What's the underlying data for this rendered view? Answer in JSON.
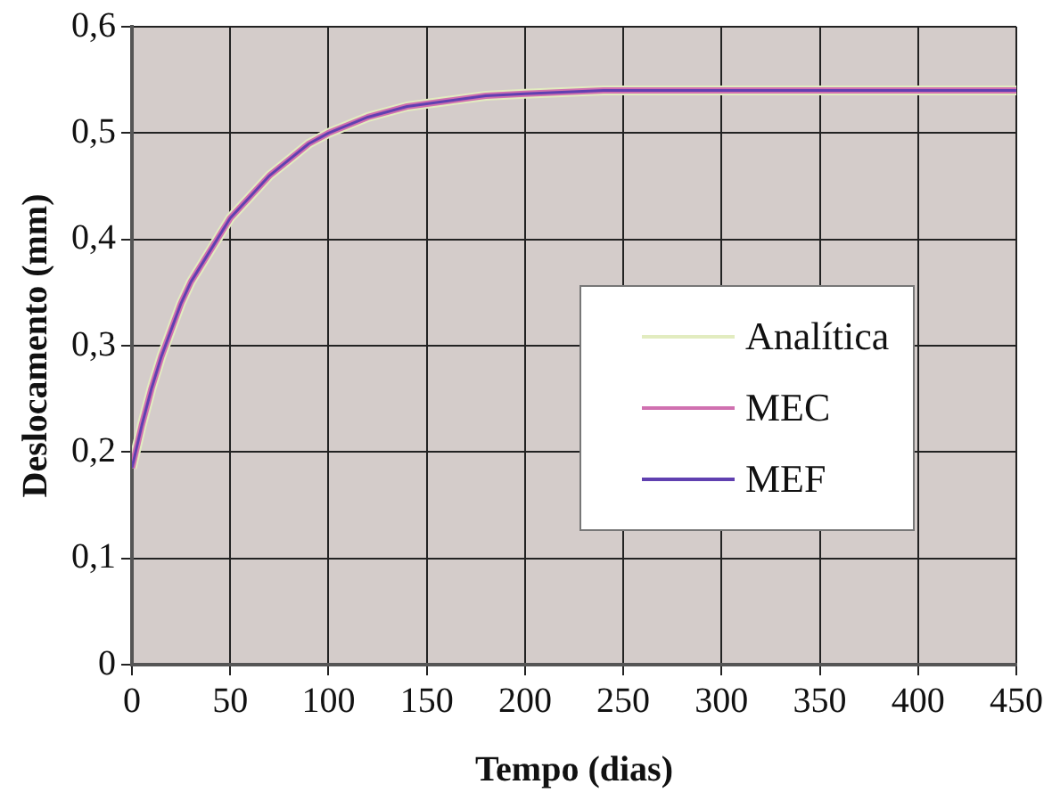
{
  "chart_data": {
    "type": "line",
    "xlabel": "Tempo (dias)",
    "ylabel": "Deslocamento (mm)",
    "x": [
      0,
      5,
      10,
      15,
      20,
      25,
      30,
      40,
      50,
      60,
      70,
      80,
      90,
      100,
      120,
      140,
      160,
      180,
      200,
      240,
      300,
      450
    ],
    "series": [
      {
        "name": "Analítica",
        "color": "#e2ecc0",
        "values": [
          0.185,
          0.225,
          0.26,
          0.29,
          0.315,
          0.34,
          0.36,
          0.39,
          0.42,
          0.44,
          0.46,
          0.475,
          0.49,
          0.5,
          0.515,
          0.525,
          0.53,
          0.535,
          0.537,
          0.54,
          0.54,
          0.54
        ]
      },
      {
        "name": "MEC",
        "color": "#d070b0",
        "values": [
          0.185,
          0.225,
          0.26,
          0.29,
          0.315,
          0.34,
          0.36,
          0.39,
          0.42,
          0.44,
          0.46,
          0.475,
          0.49,
          0.5,
          0.515,
          0.525,
          0.53,
          0.535,
          0.537,
          0.54,
          0.54,
          0.54
        ]
      },
      {
        "name": "MEF",
        "color": "#6040b0",
        "values": [
          0.185,
          0.225,
          0.26,
          0.29,
          0.315,
          0.34,
          0.36,
          0.39,
          0.42,
          0.44,
          0.46,
          0.475,
          0.49,
          0.5,
          0.515,
          0.525,
          0.53,
          0.535,
          0.537,
          0.54,
          0.54,
          0.54
        ]
      }
    ],
    "xlim": [
      0,
      450
    ],
    "xticks": [
      0,
      50,
      100,
      150,
      200,
      250,
      300,
      350,
      400,
      450
    ],
    "ylim": [
      0,
      0.6
    ],
    "yticks": [
      {
        "value": 0,
        "label": "0"
      },
      {
        "value": 0.1,
        "label": "0,1"
      },
      {
        "value": 0.2,
        "label": "0,2"
      },
      {
        "value": 0.3,
        "label": "0,3"
      },
      {
        "value": 0.4,
        "label": "0,4"
      },
      {
        "value": 0.5,
        "label": "0,5"
      },
      {
        "value": 0.6,
        "label": "0,6"
      }
    ],
    "grid": true,
    "legend": "right",
    "marker": "none",
    "line_style": "solid"
  }
}
